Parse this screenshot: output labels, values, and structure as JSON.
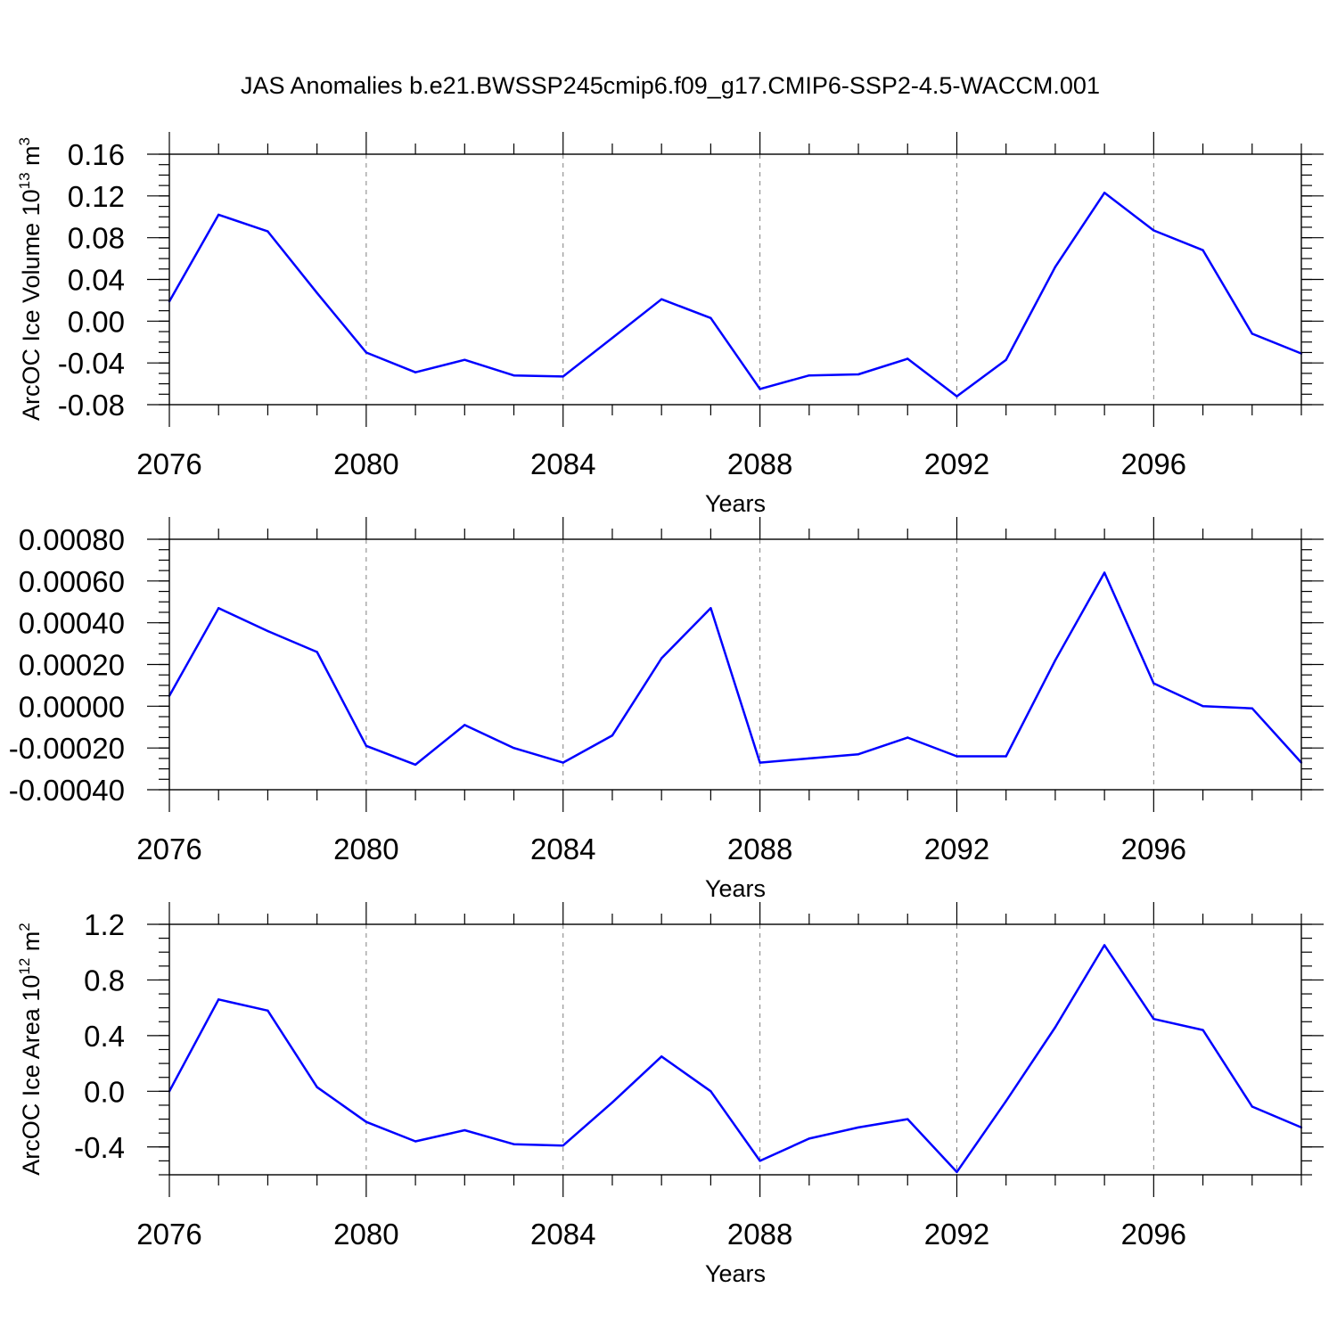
{
  "title": "JAS Anomalies b.e21.BWSSP245cmip6.f09_g17.CMIP6-SSP2-4.5-WACCM.001",
  "colors": {
    "line": "#0000ff",
    "axis": "#000000",
    "grid": "#808080"
  },
  "chart_data": [
    {
      "type": "line",
      "name": "ice-volume",
      "ylabel_main": "ArcOC Ice Volume 10",
      "ylabel_exp": "13",
      "ylabel_unit": " m",
      "ylabel_unit_exp": "3",
      "xlabel": "Years",
      "xlim": [
        2076,
        2099
      ],
      "ylim": [
        -0.08,
        0.16
      ],
      "ydec": 2,
      "ytick_step": 0.04,
      "yminor_step": 0.01,
      "x_major_ticks": [
        2076,
        2080,
        2084,
        2088,
        2092,
        2096
      ],
      "x_tick_labels": [
        "2076",
        "2080",
        "2084",
        "2088",
        "2092",
        "2096"
      ],
      "y_tick_labels": [
        "-0.08",
        "-0.04",
        "0.00",
        "0.04",
        "0.08",
        "0.12",
        "0.16"
      ],
      "x": [
        2076,
        2077,
        2078,
        2079,
        2080,
        2081,
        2082,
        2083,
        2084,
        2085,
        2086,
        2087,
        2088,
        2089,
        2090,
        2091,
        2092,
        2093,
        2094,
        2095,
        2096,
        2097,
        2098,
        2099
      ],
      "values": [
        0.019,
        0.102,
        0.086,
        0.027,
        -0.03,
        -0.049,
        -0.037,
        -0.052,
        -0.053,
        -0.016,
        0.021,
        0.003,
        -0.065,
        -0.052,
        -0.051,
        -0.036,
        -0.072,
        -0.037,
        0.052,
        0.123,
        0.087,
        0.068,
        -0.012,
        -0.031
      ],
      "grid": "dashed vertical lines at major x ticks"
    },
    {
      "type": "line",
      "name": "middle-series",
      "ylabel_main": "",
      "ylabel_exp": "",
      "ylabel_unit": "",
      "ylabel_unit_exp": "",
      "xlabel": "Years",
      "xlim": [
        2076,
        2099
      ],
      "ylim": [
        -0.0004,
        0.0008
      ],
      "ydec": 5,
      "ytick_step": 0.0002,
      "yminor_step": 5e-05,
      "x_major_ticks": [
        2076,
        2080,
        2084,
        2088,
        2092,
        2096
      ],
      "x_tick_labels": [
        "2076",
        "2080",
        "2084",
        "2088",
        "2092",
        "2096"
      ],
      "y_tick_labels": [
        "-0.00040",
        "-0.00020",
        "0.00000",
        "0.00020",
        "0.00040",
        "0.00060",
        "0.00080"
      ],
      "x": [
        2076,
        2077,
        2078,
        2079,
        2080,
        2081,
        2082,
        2083,
        2084,
        2085,
        2086,
        2087,
        2088,
        2089,
        2090,
        2091,
        2092,
        2093,
        2094,
        2095,
        2096,
        2097,
        2098,
        2099
      ],
      "values": [
        5e-05,
        0.00047,
        0.00036,
        0.00026,
        -0.00019,
        -0.00028,
        -9e-05,
        -0.0002,
        -0.00027,
        -0.00014,
        0.00023,
        0.00047,
        -0.00027,
        -0.00025,
        -0.00023,
        -0.00015,
        -0.00024,
        -0.00024,
        0.00022,
        0.00064,
        0.00011,
        0.0,
        -1e-05,
        -0.00027
      ],
      "grid": "dashed vertical lines at major x ticks"
    },
    {
      "type": "line",
      "name": "ice-area",
      "ylabel_main": "ArcOC Ice Area 10",
      "ylabel_exp": "12",
      "ylabel_unit": " m",
      "ylabel_unit_exp": "2",
      "xlabel": "Years",
      "xlim": [
        2076,
        2099
      ],
      "ylim": [
        -0.6,
        1.2
      ],
      "ydec": 1,
      "ytick_step": 0.4,
      "yminor_step": 0.1,
      "x_major_ticks": [
        2076,
        2080,
        2084,
        2088,
        2092,
        2096
      ],
      "x_tick_labels": [
        "2076",
        "2080",
        "2084",
        "2088",
        "2092",
        "2096"
      ],
      "y_tick_labels": [
        "-0.4",
        "0.0",
        "0.4",
        "0.8",
        "1.2"
      ],
      "x": [
        2076,
        2077,
        2078,
        2079,
        2080,
        2081,
        2082,
        2083,
        2084,
        2085,
        2086,
        2087,
        2088,
        2089,
        2090,
        2091,
        2092,
        2093,
        2094,
        2095,
        2096,
        2097,
        2098,
        2099
      ],
      "values": [
        0.0,
        0.66,
        0.58,
        0.03,
        -0.22,
        -0.36,
        -0.28,
        -0.38,
        -0.39,
        -0.08,
        0.25,
        0.0,
        -0.5,
        -0.34,
        -0.26,
        -0.2,
        -0.58,
        -0.07,
        0.46,
        1.05,
        0.52,
        0.44,
        -0.11,
        -0.26
      ],
      "grid": "dashed vertical lines at major x ticks"
    }
  ]
}
